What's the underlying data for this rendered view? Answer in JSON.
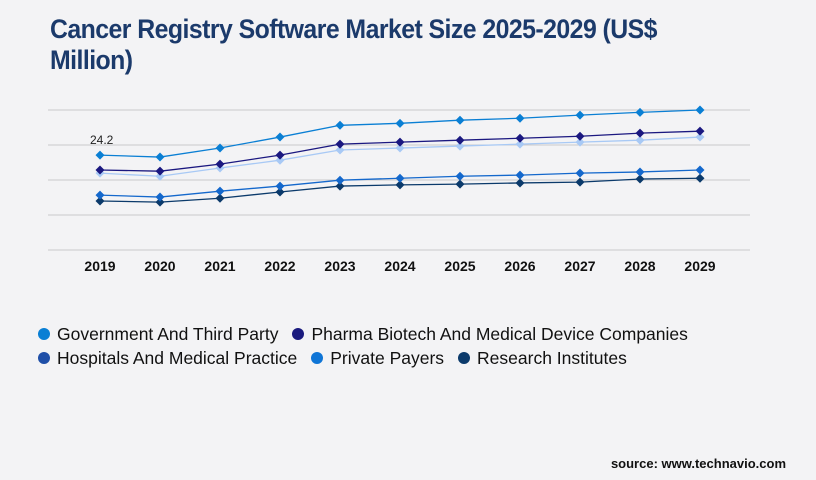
{
  "chart_data": {
    "type": "line",
    "title": "Cancer Registry Software Market Size 2025-2029 (US$ Million)",
    "xlabel": "",
    "ylabel": "",
    "x": [
      "2019",
      "2020",
      "2021",
      "2022",
      "2023",
      "2024",
      "2025",
      "2026",
      "2027",
      "2028",
      "2029"
    ],
    "ylim": [
      0,
      35.7
    ],
    "grid": true,
    "legend_position": "bottom",
    "annotations": [
      {
        "series": "Government And Third Party",
        "x": "2019",
        "text": "24.2"
      }
    ],
    "series": [
      {
        "name": "Government And Third Party",
        "color": "#0a7fd4",
        "line_color": "#0a7fd4",
        "values": [
          24.2,
          23.7,
          26.0,
          28.8,
          31.8,
          32.3,
          33.1,
          33.6,
          34.4,
          35.1,
          35.7
        ]
      },
      {
        "name": "Pharma Biotech And Medical Device Companies",
        "color": "#1a1a7e",
        "line_color": "#1b1880",
        "values": [
          20.4,
          20.1,
          21.9,
          24.2,
          27.0,
          27.5,
          28.0,
          28.5,
          29.0,
          29.8,
          30.3
        ]
      },
      {
        "name": "Hospitals And Medical Practice",
        "color": "#1f4fa8",
        "line_color": "#a8c9f5",
        "values": [
          19.6,
          18.8,
          20.9,
          22.9,
          25.5,
          26.0,
          26.5,
          27.0,
          27.5,
          28.0,
          28.8
        ]
      },
      {
        "name": "Private Payers",
        "color": "#0f75d6",
        "line_color": "#1468cc",
        "values": [
          14.0,
          13.5,
          15.0,
          16.3,
          17.8,
          18.3,
          18.8,
          19.1,
          19.6,
          19.9,
          20.4
        ]
      },
      {
        "name": "Research Institutes",
        "color": "#0b3a6b",
        "line_color": "#0b3a6b",
        "values": [
          12.5,
          12.2,
          13.2,
          14.8,
          16.3,
          16.6,
          16.8,
          17.1,
          17.3,
          18.1,
          18.3
        ]
      }
    ]
  },
  "source": "source: www.technavio.com"
}
